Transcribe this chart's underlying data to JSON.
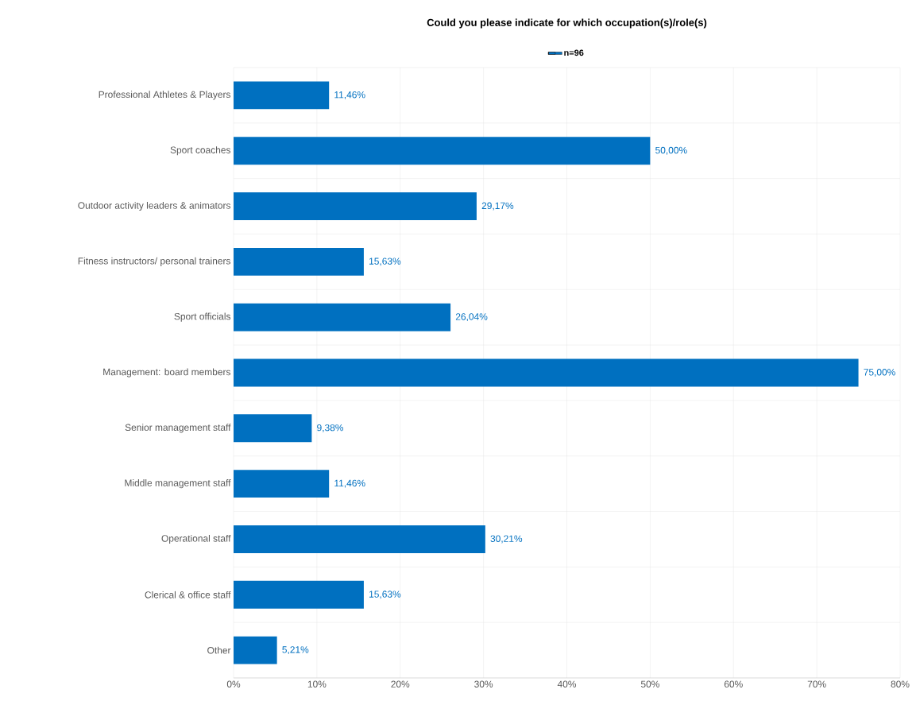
{
  "chart_data": {
    "type": "bar",
    "orientation": "horizontal",
    "title": "Could you please indicate for which occupation(s)/role(s)",
    "categories": [
      "Professional Athletes & Players",
      "Sport coaches",
      "Outdoor activity leaders & animators",
      "Fitness instructors/ personal trainers",
      "Sport officials",
      "Management: board members",
      "Senior management staff",
      "Middle management staff",
      "Operational staff",
      "Clerical & office staff",
      "Other"
    ],
    "series": [
      {
        "name": "n=96",
        "color": "#0070c0",
        "values": [
          11.46,
          50.0,
          29.17,
          15.63,
          26.04,
          75.0,
          9.38,
          11.46,
          30.21,
          15.63,
          5.21
        ],
        "value_labels": [
          "11,46%",
          "50,00%",
          "29,17%",
          "15,63%",
          "26,04%",
          "75,00%",
          "9,38%",
          "11,46%",
          "30,21%",
          "15,63%",
          "5,21%"
        ]
      }
    ],
    "xlim": [
      0,
      80
    ],
    "xticks": [
      {
        "value": 0,
        "label": "0%"
      },
      {
        "value": 10,
        "label": "10%"
      },
      {
        "value": 20,
        "label": "20%"
      },
      {
        "value": 30,
        "label": "30%"
      },
      {
        "value": 40,
        "label": "40%"
      },
      {
        "value": 50,
        "label": "50%"
      },
      {
        "value": 60,
        "label": "60%"
      },
      {
        "value": 70,
        "label": "70%"
      },
      {
        "value": 80,
        "label": "80%"
      }
    ],
    "grid": true,
    "legend": "top"
  }
}
